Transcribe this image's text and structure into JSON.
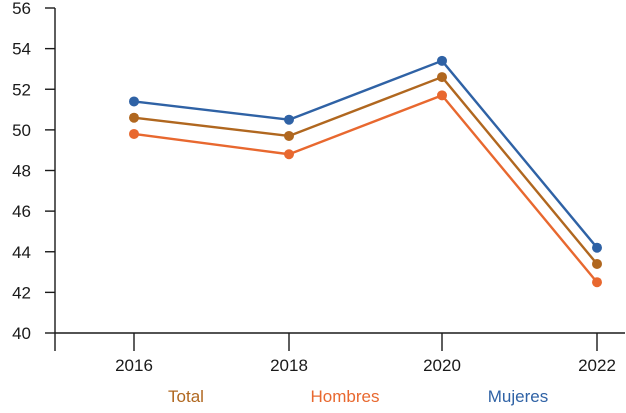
{
  "chart_data": {
    "type": "line",
    "title": "",
    "xlabel": "",
    "ylabel": "",
    "x": [
      "2016",
      "2018",
      "2020",
      "2022"
    ],
    "ylim": [
      40,
      56
    ],
    "yticks": [
      40,
      42,
      44,
      46,
      48,
      50,
      52,
      54,
      56
    ],
    "grid": false,
    "legend_position": "bottom",
    "series": [
      {
        "name": "Total",
        "color": "#b0671f",
        "values": [
          50.6,
          49.7,
          52.6,
          43.4
        ]
      },
      {
        "name": "Hombres",
        "color": "#e8682f",
        "values": [
          49.8,
          48.8,
          51.7,
          42.5
        ]
      },
      {
        "name": "Mujeres",
        "color": "#2f62a5",
        "values": [
          51.4,
          50.5,
          53.4,
          44.2
        ]
      }
    ]
  }
}
